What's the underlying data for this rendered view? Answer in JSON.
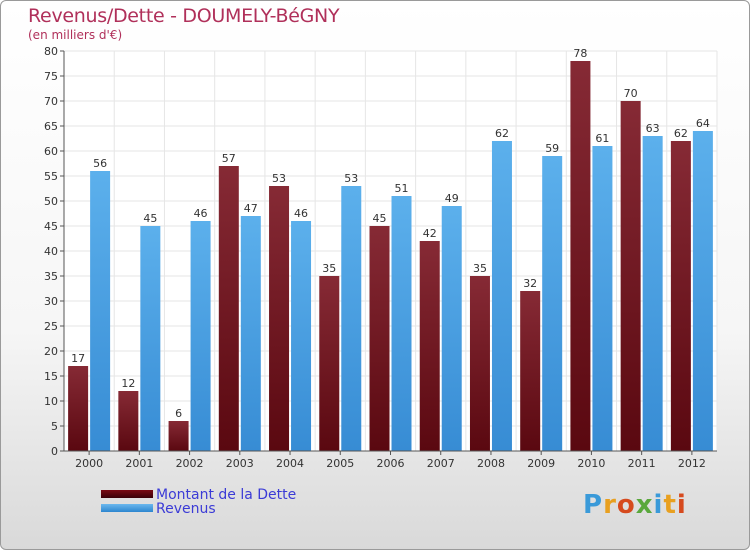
{
  "header": {
    "title": "Revenus/Dette - DOUMELY-BéGNY",
    "subtitle": "(en milliers d'€)"
  },
  "legend": {
    "dette": "Montant de la Dette",
    "revenus": "Revenus"
  },
  "logo": {
    "text": "Proxiti",
    "letters": [
      "P",
      "r",
      "o",
      "x",
      "i",
      "t",
      "i"
    ],
    "colors": [
      "#3a9ad9",
      "#e8a020",
      "#d64a1e",
      "#5aa83c",
      "#3a9ad9",
      "#e8a020",
      "#d64a1e"
    ]
  },
  "colors": {
    "dette_top": "#7e2530",
    "dette_bottom": "#5c0a12",
    "revenus_top": "#5aaee9",
    "revenus_bottom": "#3b8fd6"
  },
  "chart_data": {
    "type": "bar",
    "categories": [
      "2000",
      "2001",
      "2002",
      "2003",
      "2004",
      "2005",
      "2006",
      "2007",
      "2008",
      "2009",
      "2010",
      "2011",
      "2012"
    ],
    "series": [
      {
        "name": "Montant de la Dette",
        "values": [
          17,
          12,
          6,
          57,
          53,
          35,
          45,
          42,
          35,
          32,
          78,
          70,
          62
        ]
      },
      {
        "name": "Revenus",
        "values": [
          56,
          45,
          46,
          47,
          46,
          53,
          51,
          49,
          62,
          59,
          61,
          63,
          64
        ]
      }
    ],
    "ylim": [
      0,
      80
    ],
    "yticks": [
      0,
      5,
      10,
      15,
      20,
      25,
      30,
      35,
      40,
      45,
      50,
      55,
      60,
      65,
      70,
      75,
      80
    ],
    "grid": true,
    "legend_position": "bottom-left"
  }
}
